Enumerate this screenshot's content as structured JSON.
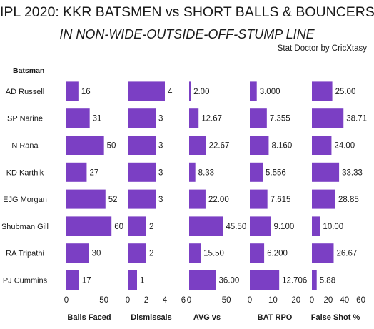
{
  "header": {
    "title": "IPL 2020: KKR BATSMEN vs SHORT BALLS & BOUNCERS",
    "subtitle": "IN  NON-WIDE-OUTSIDE-OFF-STUMP LINE",
    "credit": "Stat Doctor by CricXtasy",
    "row_header": "Batsman"
  },
  "chart_data": {
    "type": "bar",
    "orientation": "horizontal",
    "bar_color": "#7b3fc4",
    "categories": [
      "AD Russell",
      "SP Narine",
      "N Rana",
      "KD Karthik",
      "EJG Morgan",
      "Shubman Gill",
      "RA Tripathi",
      "PJ Cummins"
    ],
    "panels": [
      {
        "name": "Balls Faced",
        "values": [
          16,
          31,
          50,
          27,
          52,
          60,
          30,
          17
        ],
        "labels": [
          "16",
          "31",
          "50",
          "27",
          "52",
          "60",
          "30",
          "17"
        ],
        "xlim": [
          0,
          75
        ],
        "ticks": [
          0,
          50
        ],
        "tick_labels": [
          "0",
          "50"
        ]
      },
      {
        "name": "Dismissals",
        "values": [
          4,
          3,
          3,
          3,
          3,
          2,
          2,
          1
        ],
        "labels": [
          "4",
          "3",
          "3",
          "3",
          "3",
          "2",
          "2",
          "1"
        ],
        "xlim": [
          0,
          6
        ],
        "ticks": [
          0,
          2,
          4,
          6
        ],
        "tick_labels": [
          "0",
          "2",
          "4",
          "6"
        ]
      },
      {
        "name": "AVG vs",
        "values": [
          2.0,
          12.67,
          22.67,
          8.33,
          22.0,
          45.5,
          15.5,
          36.0
        ],
        "labels": [
          "2.00",
          "12.67",
          "22.67",
          "8.33",
          "22.00",
          "45.50",
          "15.50",
          "36.00"
        ],
        "xlim": [
          0,
          70
        ],
        "ticks": [
          0,
          50
        ],
        "tick_labels": [
          "0",
          "50"
        ]
      },
      {
        "name": "BAT RPO",
        "values": [
          3.0,
          7.355,
          8.16,
          5.556,
          7.615,
          9.1,
          6.2,
          12.706
        ],
        "labels": [
          "3.000",
          "7.355",
          "8.160",
          "5.556",
          "7.615",
          "9.100",
          "6.200",
          "12.706"
        ],
        "xlim": [
          0,
          25
        ],
        "ticks": [
          0,
          10,
          20
        ],
        "tick_labels": [
          "0",
          "10",
          "20"
        ]
      },
      {
        "name": "False Shot %",
        "values": [
          25.0,
          38.71,
          24.0,
          33.33,
          28.85,
          10.0,
          26.67,
          5.88
        ],
        "labels": [
          "25.00",
          "38.71",
          "24.00",
          "33.33",
          "28.85",
          "10.00",
          "26.67",
          "5.88"
        ],
        "xlim": [
          0,
          70
        ],
        "ticks": [
          0,
          20,
          40,
          60
        ],
        "tick_labels": [
          "0",
          "20",
          "40",
          "60"
        ]
      }
    ]
  }
}
